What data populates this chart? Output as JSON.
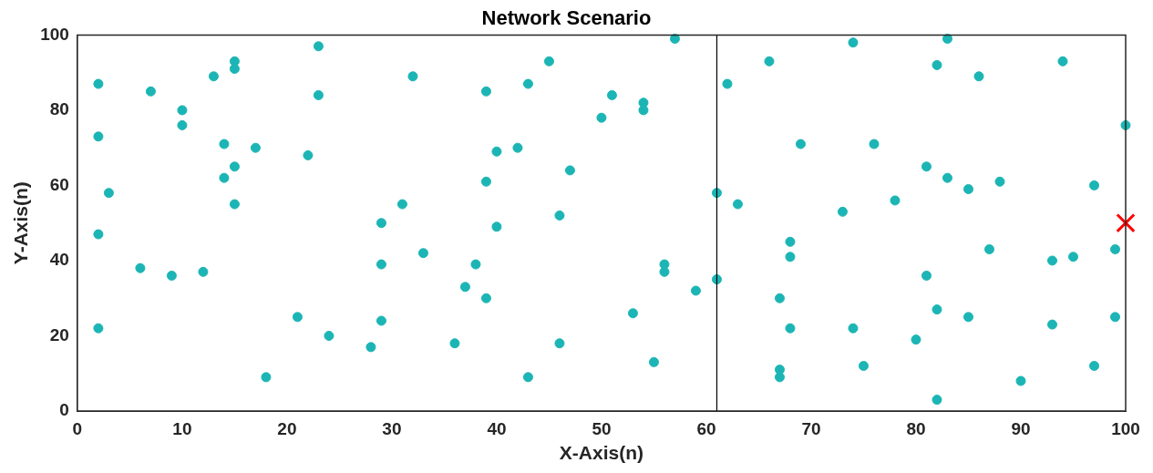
{
  "chart_data": {
    "type": "scatter",
    "title": "Network Scenario",
    "xlabel": "X-Axis(n)",
    "ylabel": "Y-Axis(n)",
    "xlim": [
      0,
      100
    ],
    "ylim": [
      0,
      100
    ],
    "xticks": [
      0,
      10,
      20,
      30,
      40,
      50,
      60,
      70,
      80,
      90,
      100
    ],
    "yticks": [
      0,
      20,
      40,
      60,
      80,
      100
    ],
    "grid": false,
    "legend": false,
    "series": [
      {
        "color": "#1cb5b5",
        "marker": "circle",
        "x": [
          2,
          2,
          3,
          2,
          2,
          6,
          7,
          9,
          10,
          10,
          12,
          13,
          14,
          14,
          15,
          15,
          15,
          15,
          17,
          18,
          21,
          22,
          23,
          23,
          24,
          28,
          29,
          29,
          29,
          31,
          32,
          33,
          36,
          37,
          38,
          39,
          39,
          39,
          40,
          40,
          42,
          43,
          43,
          45,
          46,
          46,
          47,
          50,
          51,
          53,
          54,
          54,
          55,
          56,
          56,
          57,
          59,
          61,
          61,
          62,
          63,
          66,
          67,
          67,
          67,
          68,
          68,
          68,
          69,
          73,
          74,
          74,
          75,
          76,
          78,
          80,
          81,
          81,
          82,
          82,
          82,
          83,
          83,
          85,
          85,
          86,
          87,
          88,
          90,
          93,
          93,
          94,
          95,
          97,
          97,
          99,
          99,
          100
        ],
        "values": [
          87,
          73,
          58,
          47,
          22,
          38,
          85,
          36,
          80,
          76,
          37,
          89,
          71,
          62,
          93,
          91,
          65,
          55,
          70,
          9,
          25,
          68,
          97,
          84,
          20,
          17,
          50,
          39,
          24,
          55,
          89,
          42,
          18,
          33,
          39,
          85,
          61,
          30,
          69,
          49,
          70,
          87,
          9,
          93,
          52,
          18,
          64,
          78,
          84,
          26,
          82,
          80,
          13,
          39,
          37,
          99,
          32,
          58,
          35,
          87,
          55,
          93,
          30,
          11,
          9,
          45,
          41,
          22,
          71,
          53,
          98,
          22,
          12,
          71,
          56,
          19,
          65,
          36,
          92,
          27,
          3,
          99,
          62,
          59,
          25,
          89,
          43,
          61,
          8,
          40,
          23,
          93,
          41,
          60,
          12,
          43,
          25,
          76
        ]
      },
      {
        "color": "#ff0000",
        "marker": "cross",
        "x": [
          100
        ],
        "values": [
          50
        ]
      }
    ],
    "ref_lines": [
      {
        "axis": "x",
        "value": 61,
        "color": "#000000"
      }
    ]
  }
}
